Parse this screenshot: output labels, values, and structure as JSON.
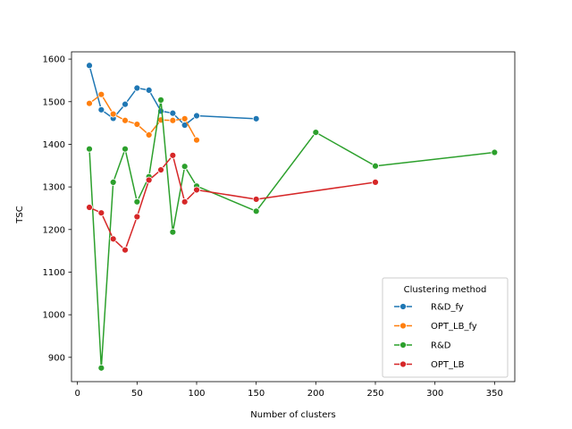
{
  "chart_data": {
    "type": "line",
    "title": "",
    "xlabel": "Number of clusters",
    "ylabel": "TSC",
    "xlim": [
      -5,
      367
    ],
    "ylim": [
      843,
      1617
    ],
    "xticks": [
      0,
      50,
      100,
      150,
      200,
      250,
      300,
      350
    ],
    "xtick_labels": [
      "0",
      "50",
      "100",
      "150",
      "200",
      "250",
      "300",
      "350"
    ],
    "yticks": [
      900,
      1000,
      1100,
      1200,
      1300,
      1400,
      1500,
      1600
    ],
    "ytick_labels": [
      "900",
      "1000",
      "1100",
      "1200",
      "1300",
      "1400",
      "1500",
      "1600"
    ],
    "grid": false,
    "legend": {
      "title": "Clustering method",
      "placement": "lower-right"
    },
    "series": [
      {
        "name": "R&D_fy",
        "color": "#1f77b4",
        "x": [
          10,
          20,
          30,
          40,
          50,
          60,
          70,
          80,
          90,
          100,
          150
        ],
        "y": [
          1585,
          1481,
          1461,
          1494,
          1532,
          1527,
          1478,
          1473,
          1445,
          1467,
          1460
        ]
      },
      {
        "name": "OPT_LB_fy",
        "color": "#ff7f0e",
        "x": [
          10,
          20,
          30,
          40,
          50,
          60,
          70,
          80,
          90,
          100
        ],
        "y": [
          1496,
          1517,
          1471,
          1456,
          1447,
          1422,
          1457,
          1456,
          1460,
          1410
        ]
      },
      {
        "name": "R&D",
        "color": "#2ca02c",
        "x": [
          10,
          20,
          30,
          40,
          50,
          60,
          70,
          80,
          90,
          100,
          150,
          200,
          250,
          350
        ],
        "y": [
          1389,
          875,
          1311,
          1389,
          1265,
          1324,
          1504,
          1194,
          1348,
          1302,
          1243,
          1428,
          1349,
          1381
        ]
      },
      {
        "name": "OPT_LB",
        "color": "#d62728",
        "x": [
          10,
          20,
          30,
          40,
          50,
          60,
          70,
          80,
          90,
          100,
          150,
          250
        ],
        "y": [
          1252,
          1239,
          1178,
          1152,
          1230,
          1316,
          1340,
          1374,
          1265,
          1293,
          1271,
          1311
        ]
      }
    ]
  }
}
